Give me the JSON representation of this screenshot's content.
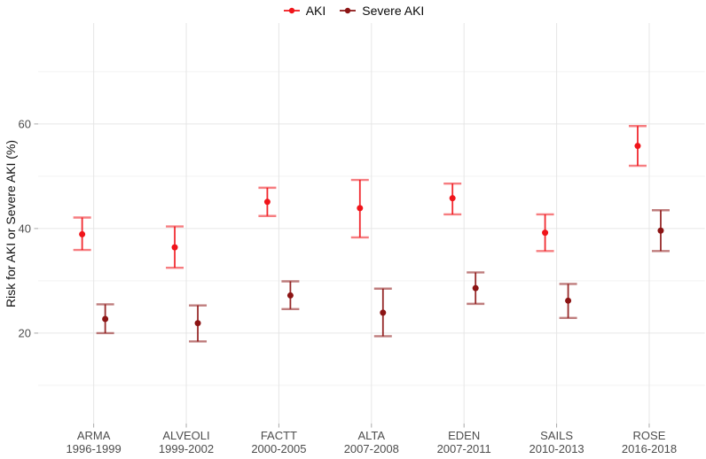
{
  "legend": {
    "items": [
      {
        "label": "AKI",
        "marker": "pointrange-icon"
      },
      {
        "label": "Severe AKI",
        "marker": "pointrange-icon"
      }
    ]
  },
  "colors": {
    "aki": "#f0141a",
    "severe_aki": "#8c1414",
    "grid_major": "#e6e6e6",
    "grid_minor": "#f2f2f2",
    "tick": "#a8a8a8",
    "axis_text": "#4d4d4d",
    "axis_title": "#111111"
  },
  "chart_data": {
    "type": "pointrange",
    "title": "",
    "xlabel": "",
    "ylabel": "Risk for AKI or Severe AKI (%)",
    "legend_position": "top-center",
    "grid": true,
    "yticks": [
      20,
      40,
      60
    ],
    "yminor": [
      10,
      30,
      50,
      70
    ],
    "ylim": [
      2.7,
      79.3
    ],
    "categories": [
      {
        "name": "ARMA",
        "years": "1996-1999"
      },
      {
        "name": "ALVEOLI",
        "years": "1999-2002"
      },
      {
        "name": "FACTT",
        "years": "2000-2005"
      },
      {
        "name": "ALTA",
        "years": "2007-2008"
      },
      {
        "name": "EDEN",
        "years": "2007-2011"
      },
      {
        "name": "SAILS",
        "years": "2010-2013"
      },
      {
        "name": "ROSE",
        "years": "2016-2018"
      }
    ],
    "series": [
      {
        "name": "AKI",
        "color": "#f0141a",
        "values": [
          38.9,
          36.4,
          45.1,
          43.9,
          45.8,
          39.2,
          55.8
        ],
        "lower": [
          35.9,
          32.5,
          42.4,
          38.3,
          42.7,
          35.7,
          52.0
        ],
        "upper": [
          42.1,
          40.4,
          47.8,
          49.3,
          48.6,
          42.7,
          59.6
        ]
      },
      {
        "name": "Severe AKI",
        "color": "#8c1414",
        "values": [
          22.7,
          21.9,
          27.2,
          23.9,
          28.6,
          26.2,
          39.6
        ],
        "lower": [
          20.0,
          18.4,
          24.6,
          19.4,
          25.6,
          22.9,
          35.7
        ],
        "upper": [
          25.5,
          25.3,
          29.9,
          28.5,
          31.6,
          29.4,
          43.5
        ]
      }
    ]
  }
}
